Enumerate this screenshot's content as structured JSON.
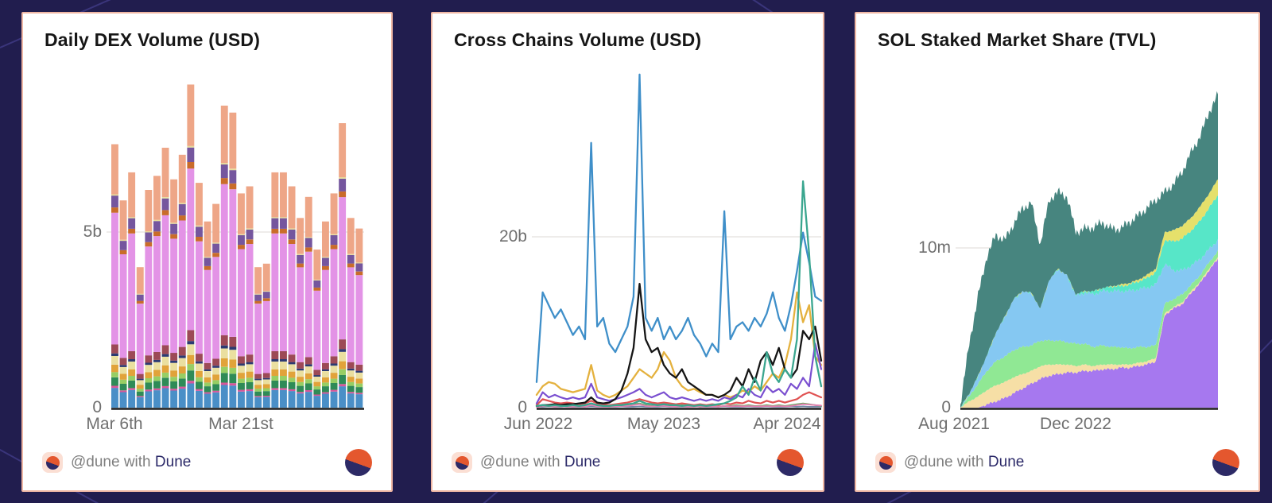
{
  "page": {
    "background_color": "#211d4e",
    "card_border_color": "#efb7a4",
    "card_background": "#ffffff"
  },
  "footer": {
    "prefix": "@dune with",
    "brand": "Dune"
  },
  "cards": [
    {
      "title": "Daily DEX Volume (USD)",
      "y_ticks": [
        "5b",
        "0"
      ],
      "x_ticks": [
        "Mar 6th",
        "Mar 21st"
      ]
    },
    {
      "title": "Cross Chains Volume (USD)",
      "y_ticks": [
        "20b",
        "0"
      ],
      "x_ticks": [
        "Jun 2022",
        "May 2023",
        "Apr 2024"
      ]
    },
    {
      "title": "SOL Staked Market Share (TVL)",
      "y_ticks": [
        "10m",
        "0"
      ],
      "x_ticks": [
        "Aug 2021",
        "Dec 2022"
      ]
    }
  ],
  "chart_data": [
    {
      "type": "bar",
      "stacked": true,
      "title": "Daily DEX Volume (USD)",
      "unit": "billion USD per day",
      "x_axis": "days, Mar 2024 (Mar 6th and Mar 21st labeled)",
      "ylim": [
        0,
        10
      ],
      "y_tick_value": 5,
      "grid": "single horizontal line at 5b",
      "values": [
        7.5,
        5.9,
        6.7,
        4.0,
        6.2,
        6.6,
        7.4,
        6.5,
        7.2,
        9.2,
        6.4,
        5.3,
        5.8,
        8.6,
        8.4,
        6.1,
        6.3,
        4.0,
        4.1,
        6.7,
        6.7,
        6.3,
        5.4,
        6.0,
        4.5,
        5.3,
        6.1,
        8.1,
        5.4,
        5.1
      ],
      "segments": [
        {
          "name": "dex-1",
          "color": "#4a8fc7",
          "share": 0.075
        },
        {
          "name": "dex-2",
          "color": "#d9569b",
          "share": 0.008
        },
        {
          "name": "dex-3",
          "color": "#2f8b57",
          "share": 0.032
        },
        {
          "name": "dex-4",
          "color": "#97ce64",
          "share": 0.02
        },
        {
          "name": "dex-5",
          "color": "#e1a33a",
          "share": 0.028
        },
        {
          "name": "dex-6",
          "color": "#eadfa0",
          "share": 0.033
        },
        {
          "name": "dex-7",
          "color": "#2c3a72",
          "share": 0.01
        },
        {
          "name": "dex-8",
          "color": "#9c4a56",
          "share": 0.034
        },
        {
          "name": "dex-9",
          "color": "#e393e6",
          "share": 0.5
        },
        {
          "name": "dex-10",
          "color": "#c96c2a",
          "share": 0.02
        },
        {
          "name": "dex-11",
          "color": "#75569e",
          "share": 0.045
        },
        {
          "name": "dex-12",
          "color": "#e6dc9a",
          "share": 0.005
        },
        {
          "name": "dex-13",
          "color": "#eea687",
          "share": 0.19
        }
      ]
    },
    {
      "type": "line",
      "title": "Cross Chains Volume (USD)",
      "unit": "billion USD",
      "x_axis": "Jun 2022 to Apr 2024",
      "ylim": [
        0,
        40
      ],
      "y_tick_value": 20,
      "grid": "single horizontal line at 20b",
      "x_count": 48,
      "series": [
        {
          "name": "chain-slate",
          "color": "#7286a8",
          "width": 1.8,
          "values": [
            0.1,
            0.1,
            0.15,
            0.1,
            0.1,
            0.15,
            0.1,
            0.1,
            0.1,
            0.15,
            0.1,
            0.1,
            0.1,
            0.1,
            0.15,
            0.1,
            0.1,
            0.15,
            0.1,
            0.1,
            0.1,
            0.15,
            0.1,
            0.1,
            0.1,
            0.1,
            0.15,
            0.1,
            0.1,
            0.1,
            0.1,
            0.15,
            0.1,
            0.1,
            0.1,
            0.15,
            0.1,
            0.1,
            0.15,
            0.1,
            0.1,
            0.1,
            0.15,
            0.1,
            0.15,
            0.1,
            0.1,
            0.1
          ]
        },
        {
          "name": "chain-green",
          "color": "#69a85c",
          "width": 1.8,
          "values": [
            0.1,
            0.3,
            0.2,
            0.3,
            0.2,
            0.3,
            0.2,
            0.2,
            0.3,
            0.4,
            0.2,
            0.2,
            0.1,
            0.2,
            0.3,
            0.3,
            0.4,
            0.5,
            0.3,
            0.2,
            0.3,
            0.3,
            0.2,
            0.2,
            0.3,
            0.2,
            0.2,
            0.1,
            0.2,
            0.2,
            0.1,
            0.2,
            0.2,
            0.3,
            0.2,
            0.3,
            0.2,
            0.2,
            0.3,
            0.2,
            0.3,
            0.2,
            0.3,
            0.4,
            0.5,
            0.4,
            0.3,
            0.2
          ]
        },
        {
          "name": "chain-pink",
          "color": "#e47fb2",
          "width": 1.8,
          "values": [
            0.05,
            0.2,
            0.15,
            0.1,
            0.15,
            0.1,
            0.1,
            0.15,
            0.1,
            0.3,
            0.15,
            0.1,
            0.1,
            0.15,
            0.2,
            0.2,
            0.3,
            0.4,
            0.2,
            0.15,
            0.2,
            0.2,
            0.15,
            0.1,
            0.15,
            0.1,
            0.1,
            0.15,
            0.1,
            0.15,
            0.1,
            0.2,
            0.15,
            0.2,
            0.15,
            0.2,
            0.15,
            0.15,
            0.2,
            0.15,
            0.2,
            0.15,
            0.2,
            0.3,
            0.4,
            0.35,
            0.3,
            0.25
          ]
        },
        {
          "name": "chain-red",
          "color": "#e05252",
          "width": 2.2,
          "values": [
            0.3,
            1,
            0.8,
            0.6,
            0.5,
            0.6,
            0.5,
            0.4,
            0.5,
            0.8,
            0.5,
            0.4,
            0.3,
            0.4,
            0.5,
            0.6,
            0.8,
            1,
            0.8,
            0.6,
            0.5,
            0.6,
            0.5,
            0.4,
            0.5,
            0.4,
            0.3,
            0.4,
            0.3,
            0.4,
            0.3,
            0.5,
            0.4,
            0.6,
            0.5,
            0.8,
            0.6,
            0.5,
            0.8,
            0.6,
            0.8,
            0.6,
            0.8,
            1,
            1.5,
            1.8,
            1.5,
            1.2
          ]
        },
        {
          "name": "chain-gold",
          "color": "#e4b13e",
          "width": 2.3,
          "values": [
            1.5,
            2.5,
            3,
            2.8,
            2.2,
            2,
            1.8,
            2,
            2.2,
            5,
            2,
            1.5,
            1.2,
            1.5,
            2,
            2.5,
            3.5,
            4.5,
            4,
            3.5,
            4.5,
            6.5,
            5.5,
            3.5,
            2.5,
            2,
            2.2,
            1.8,
            1.5,
            1.5,
            1.2,
            1.5,
            1.2,
            1.5,
            2,
            1.8,
            2.5,
            2,
            3,
            4,
            3.5,
            5,
            8,
            13.5,
            10,
            12,
            6,
            5
          ]
        },
        {
          "name": "chain-purple",
          "color": "#7a4fd0",
          "width": 2.2,
          "values": [
            0.5,
            1.8,
            1.2,
            1.5,
            1.2,
            1,
            1.2,
            1,
            1.2,
            2.8,
            1.2,
            1,
            0.8,
            1,
            1.2,
            1.5,
            1.8,
            2.2,
            1.5,
            1.2,
            1.5,
            1.8,
            1.2,
            1,
            1.2,
            1,
            0.8,
            1,
            0.8,
            1,
            0.8,
            1.2,
            1,
            1.5,
            1.2,
            2.2,
            1.5,
            1.2,
            2.5,
            1.8,
            2.2,
            1.5,
            2.8,
            2.2,
            3.5,
            2.5,
            7.5,
            4.5
          ]
        },
        {
          "name": "chain-black",
          "color": "#151515",
          "width": 2.3,
          "values": [
            0.2,
            0.3,
            0.3,
            0.4,
            0.3,
            0.4,
            0.4,
            0.5,
            0.6,
            1.2,
            0.6,
            0.5,
            0.6,
            1,
            2,
            4,
            7,
            14.5,
            8,
            6.5,
            7,
            5,
            4,
            3.5,
            4.5,
            3,
            2.5,
            2,
            1.5,
            1.5,
            1.2,
            1.5,
            2,
            3.5,
            2.5,
            4.5,
            3,
            5.5,
            6.5,
            5,
            7,
            4.5,
            3.5,
            4.5,
            9,
            8,
            9.5,
            5.5
          ]
        },
        {
          "name": "chain-blue",
          "color": "#3f8fc9",
          "width": 2.3,
          "values": [
            3,
            13.5,
            12,
            10.5,
            11.5,
            10,
            8.5,
            9.5,
            8,
            31,
            9.5,
            10.5,
            7.5,
            6.5,
            8,
            9.5,
            13,
            39,
            10.5,
            9,
            10.5,
            8,
            9.5,
            8,
            9,
            10.5,
            8.5,
            7.5,
            6,
            7.5,
            6.5,
            23,
            8,
            9.5,
            10,
            9,
            10.5,
            9.5,
            11,
            13.5,
            10.5,
            9,
            12,
            16,
            20.5,
            17,
            13,
            12.5
          ]
        },
        {
          "name": "chain-teal",
          "color": "#3aa68f",
          "width": 2.3,
          "values": [
            0.2,
            0.3,
            0.2,
            0.3,
            0.2,
            0.2,
            0.3,
            0.2,
            0.3,
            0.5,
            0.3,
            0.2,
            0.2,
            0.3,
            0.3,
            0.4,
            0.5,
            0.8,
            0.5,
            0.4,
            0.3,
            0.4,
            0.3,
            0.3,
            0.2,
            0.3,
            0.2,
            0.3,
            0.2,
            0.3,
            0.4,
            0.5,
            0.8,
            1.2,
            2.5,
            1.5,
            3.5,
            2,
            6.5,
            4,
            3,
            4.5,
            3.5,
            8,
            26.5,
            18,
            6,
            2.5
          ]
        }
      ]
    },
    {
      "type": "area",
      "stacked": true,
      "title": "SOL Staked Market Share (TVL)",
      "unit": "million SOL (TVL)",
      "x_axis": "Aug 2021 to mid 2024",
      "ylim": [
        0,
        20
      ],
      "y_tick_value": 10,
      "grid": "single horizontal line at 10m",
      "x_count": 30,
      "layers": [
        {
          "name": "staker-purple",
          "color": "#a678ef",
          "jitter": 0.06,
          "values": [
            0,
            0,
            0,
            0.2,
            0.4,
            0.6,
            0.9,
            1.2,
            1.5,
            1.8,
            2.0,
            2.1,
            2.2,
            2.2,
            2.3,
            2.3,
            2.4,
            2.4,
            2.5,
            2.5,
            2.6,
            2.7,
            2.9,
            5.8,
            6.2,
            6.5,
            7.2,
            7.8,
            8.6,
            9.3
          ]
        },
        {
          "name": "staker-peach",
          "color": "#f6dfa6",
          "jitter": 0.03,
          "values": [
            0,
            0.4,
            0.7,
            0.9,
            1.0,
            1.0,
            1.0,
            0.9,
            0.8,
            0.8,
            0.7,
            0.6,
            0.5,
            0.4,
            0.4,
            0.3,
            0.3,
            0.3,
            0.2,
            0.2,
            0.2,
            0.2,
            0.2,
            0.1,
            0.1,
            0.1,
            0.1,
            0.1,
            0.1,
            0.1
          ]
        },
        {
          "name": "staker-lightgreen",
          "color": "#90e894",
          "jitter": 0.05,
          "values": [
            0,
            0.3,
            0.8,
            1.2,
            1.5,
            1.6,
            1.7,
            1.7,
            1.6,
            1.6,
            1.5,
            1.5,
            1.4,
            1.4,
            1.3,
            1.2,
            1.2,
            1.1,
            1.1,
            1.0,
            1.0,
            0.9,
            0.8,
            0.6,
            0.5,
            0.5,
            0.4,
            0.4,
            0.4,
            0.4
          ]
        },
        {
          "name": "staker-skyblue",
          "color": "#85c8f2",
          "jitter": 0.1,
          "values": [
            0,
            0.2,
            0.5,
            1.0,
            1.8,
            2.5,
            3.2,
            3.5,
            3.3,
            2.0,
            3.8,
            4.5,
            4.2,
            3.0,
            3.2,
            3.3,
            3.4,
            3.5,
            3.5,
            3.6,
            3.6,
            3.7,
            3.8,
            2.5,
            1.8,
            1.5,
            1.2,
            1.0,
            0.8,
            0.7
          ]
        },
        {
          "name": "staker-turquoise",
          "color": "#57e6c8",
          "jitter": 0.07,
          "values": [
            0,
            0,
            0,
            0,
            0,
            0,
            0,
            0,
            0,
            0,
            0,
            0,
            0,
            0.1,
            0.1,
            0.2,
            0.2,
            0.3,
            0.3,
            0.4,
            0.5,
            0.6,
            0.8,
            1.5,
            1.8,
            2.0,
            2.2,
            2.4,
            2.6,
            2.8
          ]
        },
        {
          "name": "staker-yellow",
          "color": "#e5e06b",
          "jitter": 0.04,
          "values": [
            0,
            0,
            0,
            0,
            0,
            0,
            0,
            0,
            0,
            0,
            0,
            0,
            0,
            0,
            0,
            0,
            0,
            0,
            0.1,
            0.1,
            0.1,
            0.2,
            0.2,
            0.5,
            0.7,
            0.8,
            0.8,
            0.9,
            0.9,
            1.0
          ]
        },
        {
          "name": "staker-darkteal",
          "color": "#47857f",
          "jitter": 0.22,
          "values": [
            0.2,
            3.1,
            5.0,
            6.2,
            6.1,
            4.8,
            4.7,
            5.2,
            5.6,
            4.0,
            5.0,
            4.8,
            4.9,
            3.9,
            3.9,
            4.0,
            4.1,
            3.6,
            3.5,
            3.8,
            4.0,
            4.2,
            4.3,
            2.5,
            2.9,
            3.4,
            4.1,
            4.4,
            5.1,
            5.3
          ]
        }
      ]
    }
  ]
}
